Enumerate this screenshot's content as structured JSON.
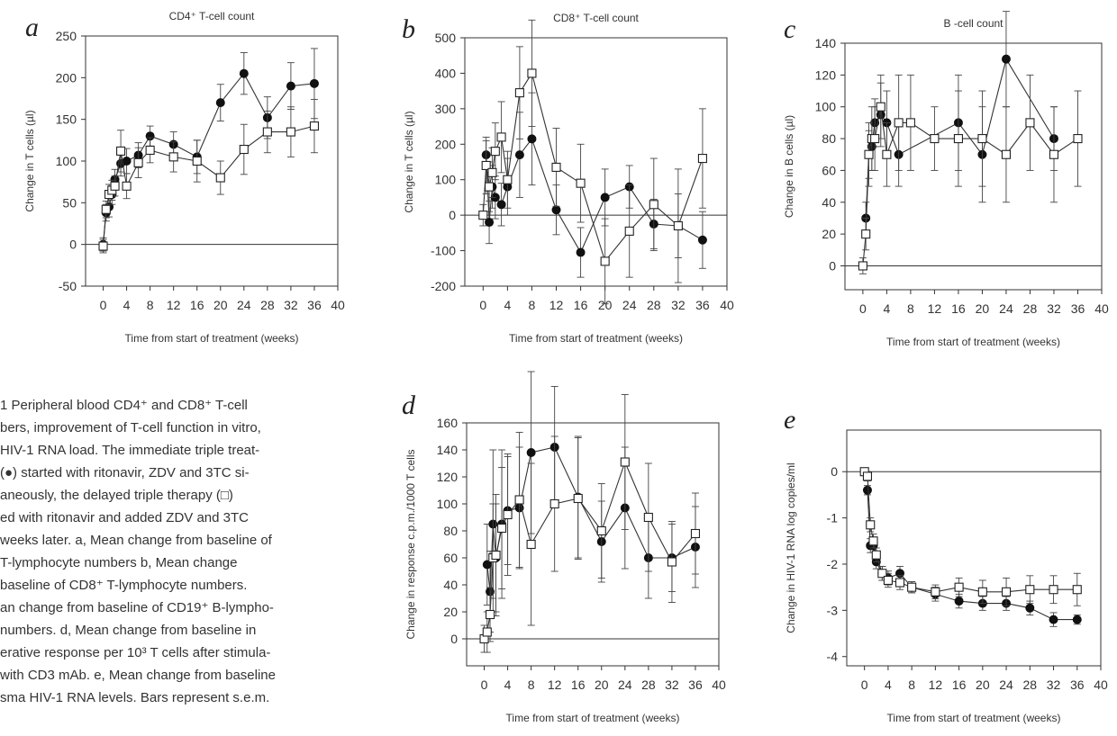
{
  "chart_data": [
    {
      "panel": "a",
      "type": "line",
      "title": "CD4⁺ T-cell count",
      "xlabel": "Time from start of treatment (weeks)",
      "ylabel": "Change in T cells (µl)",
      "xlim": [
        -3,
        40
      ],
      "ylim": [
        -50,
        250
      ],
      "xticks": [
        0,
        4,
        8,
        12,
        16,
        20,
        24,
        28,
        32,
        36,
        40
      ],
      "yticks": [
        -50,
        0,
        50,
        100,
        150,
        200,
        250
      ],
      "series": [
        {
          "marker": "filled-circle",
          "x": [
            0,
            0.5,
            1,
            1.5,
            2,
            3,
            4,
            6,
            8,
            12,
            16,
            20,
            24,
            28,
            32,
            36
          ],
          "y": [
            0,
            38,
            45,
            60,
            78,
            97,
            100,
            107,
            130,
            120,
            105,
            170,
            205,
            152,
            190,
            193
          ],
          "err": [
            8,
            10,
            12,
            12,
            12,
            15,
            15,
            15,
            12,
            15,
            20,
            22,
            25,
            25,
            28,
            42
          ]
        },
        {
          "marker": "open-square",
          "x": [
            0,
            0.5,
            1,
            1.5,
            2,
            3,
            4,
            6,
            8,
            12,
            16,
            20,
            24,
            28,
            32,
            36
          ],
          "y": [
            -2,
            42,
            60,
            65,
            70,
            112,
            70,
            98,
            113,
            105,
            100,
            80,
            114,
            135,
            135,
            142
          ],
          "err": [
            8,
            10,
            12,
            12,
            12,
            25,
            15,
            18,
            15,
            18,
            25,
            20,
            30,
            25,
            30,
            32
          ]
        }
      ]
    },
    {
      "panel": "b",
      "type": "line",
      "title": "CD8⁺ T-cell count",
      "xlabel": "Time from start of treatment (weeks)",
      "ylabel": "Change in T cells (µl)",
      "xlim": [
        -3,
        40
      ],
      "ylim": [
        -200,
        500
      ],
      "xticks": [
        0,
        4,
        8,
        12,
        16,
        20,
        24,
        28,
        32,
        36,
        40
      ],
      "yticks": [
        -200,
        -100,
        0,
        100,
        200,
        300,
        400,
        500
      ],
      "series": [
        {
          "marker": "filled-circle",
          "x": [
            0.5,
            1,
            1.5,
            2,
            3,
            4,
            6,
            8,
            12,
            16,
            20,
            24,
            28,
            32,
            36
          ],
          "y": [
            170,
            -20,
            80,
            50,
            30,
            80,
            170,
            215,
            15,
            -105,
            50,
            80,
            -25,
            -30,
            -70
          ],
          "err": [
            40,
            60,
            60,
            60,
            60,
            80,
            120,
            130,
            70,
            70,
            80,
            60,
            70,
            90,
            80
          ]
        },
        {
          "marker": "open-square",
          "x": [
            0,
            0.5,
            1,
            1.5,
            2,
            3,
            4,
            6,
            8,
            12,
            16,
            20,
            24,
            28,
            32,
            36
          ],
          "y": [
            0,
            140,
            80,
            120,
            180,
            220,
            100,
            345,
            400,
            135,
            90,
            -130,
            -45,
            30,
            -30,
            160
          ],
          "err": [
            30,
            80,
            70,
            70,
            80,
            100,
            80,
            130,
            150,
            110,
            110,
            120,
            130,
            130,
            160,
            140
          ]
        }
      ]
    },
    {
      "panel": "c",
      "type": "line",
      "title": "B -cell count",
      "xlabel": "Time from start of treatment (weeks)",
      "ylabel": "Change in B cells (µl)",
      "xlim": [
        -3,
        40
      ],
      "ylim": [
        -15,
        140
      ],
      "xticks": [
        0,
        4,
        8,
        12,
        16,
        20,
        24,
        28,
        32,
        36,
        40
      ],
      "yticks": [
        0,
        20,
        40,
        60,
        80,
        100,
        120,
        140
      ],
      "series": [
        {
          "marker": "filled-circle",
          "x": [
            0.5,
            1,
            1.5,
            2,
            3,
            4,
            6,
            16,
            20,
            24,
            32
          ],
          "y": [
            30,
            70,
            75,
            90,
            95,
            90,
            70,
            90,
            70,
            130,
            80
          ],
          "err": [
            10,
            15,
            15,
            15,
            20,
            20,
            20,
            30,
            30,
            30,
            20
          ]
        },
        {
          "marker": "open-square",
          "x": [
            0,
            0.5,
            1,
            1.5,
            2,
            3,
            4,
            6,
            8,
            12,
            16,
            20,
            24,
            28,
            32,
            36
          ],
          "y": [
            0,
            20,
            70,
            80,
            80,
            100,
            70,
            90,
            90,
            80,
            80,
            80,
            70,
            90,
            70,
            80
          ],
          "err": [
            5,
            10,
            20,
            20,
            20,
            20,
            20,
            30,
            30,
            20,
            30,
            30,
            30,
            30,
            30,
            30
          ]
        }
      ]
    },
    {
      "panel": "d",
      "type": "line",
      "title": "",
      "xlabel": "Time from start of treatment (weeks)",
      "ylabel": "Change in response c.p.m./1000 T cells",
      "xlim": [
        -3,
        40
      ],
      "ylim": [
        -20,
        160
      ],
      "xticks": [
        0,
        4,
        8,
        12,
        16,
        20,
        24,
        28,
        32,
        36,
        40
      ],
      "yticks": [
        0,
        20,
        40,
        60,
        80,
        100,
        120,
        140,
        160
      ],
      "series": [
        {
          "marker": "filled-circle",
          "x": [
            0.5,
            1,
            1.5,
            2,
            3,
            4,
            6,
            8,
            12,
            16,
            20,
            24,
            28,
            32,
            36
          ],
          "y": [
            55,
            35,
            85,
            60,
            85,
            95,
            97,
            138,
            142,
            105,
            72,
            97,
            60,
            60,
            68
          ],
          "err": [
            30,
            30,
            55,
            40,
            55,
            40,
            45,
            60,
            45,
            45,
            30,
            45,
            30,
            25,
            30
          ]
        },
        {
          "marker": "open-square",
          "x": [
            0,
            0.5,
            1,
            1.5,
            2,
            3,
            4,
            6,
            8,
            12,
            16,
            20,
            24,
            28,
            32,
            36
          ],
          "y": [
            0,
            5,
            18,
            60,
            62,
            82,
            92,
            103,
            70,
            100,
            104,
            80,
            131,
            90,
            57,
            78
          ],
          "err": [
            10,
            15,
            20,
            40,
            45,
            45,
            45,
            50,
            60,
            50,
            45,
            35,
            50,
            40,
            30,
            30
          ]
        }
      ]
    },
    {
      "panel": "e",
      "type": "line",
      "title": "",
      "xlabel": "Time from start of treatment (weeks)",
      "ylabel": "Change in HIV-1 RNA log copies/ml",
      "xlim": [
        -3,
        40
      ],
      "ylim": [
        -4.2,
        0.9
      ],
      "xticks": [
        0,
        4,
        8,
        12,
        16,
        20,
        24,
        28,
        32,
        36,
        40
      ],
      "yticks": [
        0,
        -1,
        -2,
        -3,
        -4
      ],
      "series": [
        {
          "marker": "filled-circle",
          "x": [
            0.5,
            1,
            1.5,
            2,
            3,
            4,
            6,
            8,
            12,
            16,
            20,
            24,
            28,
            32,
            36
          ],
          "y": [
            -0.4,
            -1.6,
            -1.6,
            -1.95,
            -2.2,
            -2.3,
            -2.2,
            -2.5,
            -2.65,
            -2.8,
            -2.85,
            -2.85,
            -2.95,
            -3.2,
            -3.2
          ],
          "err": [
            0.1,
            0.15,
            0.15,
            0.15,
            0.15,
            0.15,
            0.15,
            0.12,
            0.15,
            0.15,
            0.15,
            0.15,
            0.15,
            0.15,
            0.1
          ]
        },
        {
          "marker": "open-square",
          "x": [
            0,
            0.5,
            1,
            1.5,
            2,
            3,
            4,
            6,
            8,
            12,
            16,
            20,
            24,
            28,
            32,
            36
          ],
          "y": [
            0,
            -0.1,
            -1.15,
            -1.5,
            -1.8,
            -2.2,
            -2.35,
            -2.4,
            -2.5,
            -2.6,
            -2.5,
            -2.6,
            -2.6,
            -2.55,
            -2.55,
            -2.55
          ],
          "err": [
            0.05,
            0.1,
            0.15,
            0.15,
            0.15,
            0.15,
            0.15,
            0.15,
            0.12,
            0.15,
            0.2,
            0.25,
            0.3,
            0.3,
            0.3,
            0.35
          ]
        }
      ]
    }
  ],
  "caption_lines": [
    "1   Peripheral blood CD4⁺ and CD8⁺ T-cell",
    "bers, improvement of T-cell function in vitro,",
    "HIV-1 RNA load. The immediate triple treat-",
    " (●) started with ritonavir, ZDV and 3TC si-",
    "aneously, the delayed triple therapy (□)",
    "ed with ritonavir and added ZDV and 3TC",
    " weeks later. a, Mean change from baseline of",
    " T-lymphocyte numbers b, Mean change",
    " baseline of CD8⁺ T-lymphocyte numbers.",
    "an change from baseline of CD19⁺ B-lympho-",
    "numbers. d, Mean change from baseline in",
    "erative response per 10³ T cells after stimula-",
    "with CD3 mAb. e, Mean change from baseline",
    "sma HIV-1 RNA levels. Bars represent s.e.m."
  ]
}
